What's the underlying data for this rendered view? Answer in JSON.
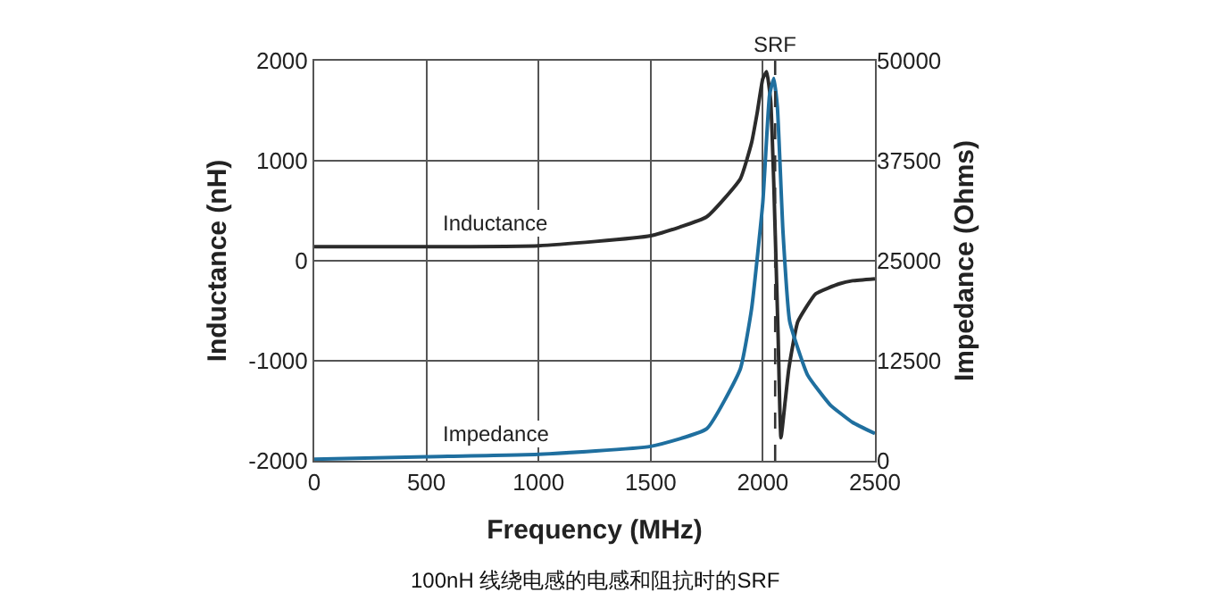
{
  "chart_data": {
    "type": "line",
    "xlabel": "Frequency (MHz)",
    "ylabel": "Inductance (nH)",
    "y2label": "Impedance (Ohms)",
    "xlim": [
      0,
      2500
    ],
    "xticks": [
      0,
      500,
      1000,
      1500,
      2000,
      2500
    ],
    "ylim": [
      -2000,
      2000
    ],
    "yticks": [
      -2000,
      -1000,
      0,
      1000,
      2000
    ],
    "y2lim": [
      0,
      50000
    ],
    "y2ticks": [
      0,
      12500,
      25000,
      37500,
      50000
    ],
    "grid": true,
    "legend": false,
    "marker": "none",
    "line_style": "solid",
    "series": [
      {
        "name": "Inductance",
        "color": "#2b2b2b",
        "x": [
          0,
          500,
          1000,
          1500,
          1750,
          1900,
          1950,
          1975,
          2000,
          2017,
          2035,
          2049,
          2068,
          2081,
          2100,
          2116,
          2156,
          2236,
          2342,
          2400,
          2500
        ],
        "values": [
          140,
          140,
          150,
          250,
          440,
          820,
          1180,
          1480,
          1820,
          1890,
          1600,
          770,
          -730,
          -1770,
          -1400,
          -1080,
          -610,
          -330,
          -230,
          -200,
          -180
        ]
      },
      {
        "name": "Impedance",
        "color": "#1f6f9f",
        "axis": "y2",
        "x": [
          0,
          500,
          1000,
          1500,
          1750,
          1900,
          1950,
          2000,
          2030,
          2049,
          2065,
          2090,
          2120,
          2200,
          2300,
          2400,
          2500
        ],
        "values": [
          200,
          500,
          800,
          1800,
          4000,
          11500,
          19000,
          32300,
          45700,
          47800,
          44200,
          28600,
          17400,
          10700,
          7000,
          4800,
          3400
        ]
      }
    ],
    "ref_lines": [
      {
        "axis": "x",
        "value": 2055,
        "label": "SRF",
        "color": "#333333",
        "line_style": "dashed"
      }
    ],
    "annotations": [
      "100nH 线绕电感的电感和阻抗时的SRF"
    ]
  }
}
